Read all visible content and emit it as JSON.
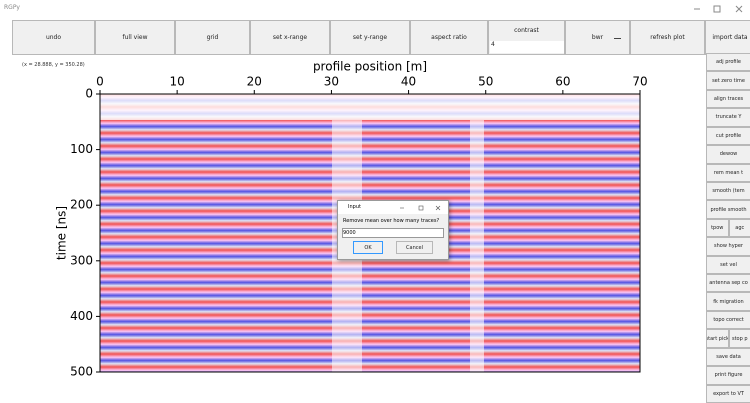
{
  "window": {
    "title": "RGPy"
  },
  "toolbar": {
    "buttons": [
      "undo",
      "full view",
      "grid",
      "set x-range",
      "set y-range",
      "aspect ratio"
    ],
    "contrast_label": "contrast",
    "contrast_value": "4",
    "colormap": "bwr",
    "refresh": "refresh plot",
    "import": "import data"
  },
  "sidebar": {
    "rows": [
      [
        "adj profile"
      ],
      [
        "set zero time"
      ],
      [
        "align traces"
      ],
      [
        "truncate Y"
      ],
      [
        "cut profile"
      ],
      [
        "dewow"
      ],
      [
        "rem mean t"
      ],
      [
        "smooth (tem"
      ],
      [
        "profile smooth"
      ],
      [
        "tpow",
        "agc"
      ],
      [
        "show hyper"
      ],
      [
        "set vel"
      ],
      [
        "antenna sep co"
      ],
      [
        "fk migration"
      ],
      [
        "topo correct"
      ],
      [
        "start pick",
        "stop p"
      ],
      [
        "save data"
      ],
      [
        "print figure"
      ],
      [
        "export to VT"
      ]
    ]
  },
  "plot": {
    "coords": "(x = 28.888, y = 350.28)",
    "xlabel": "profile position [m]",
    "ylabel": "time [ns]",
    "xlim": [
      0,
      70
    ],
    "ylim": [
      0,
      500
    ],
    "xticks": [
      0,
      10,
      20,
      30,
      40,
      50,
      60,
      70
    ],
    "yticks": [
      0,
      100,
      200,
      300,
      400,
      500
    ]
  },
  "dialog": {
    "title": "Input",
    "prompt": "Remove mean over how many traces?",
    "input": "9000",
    "ok": "OK",
    "cancel": "Cancel"
  }
}
